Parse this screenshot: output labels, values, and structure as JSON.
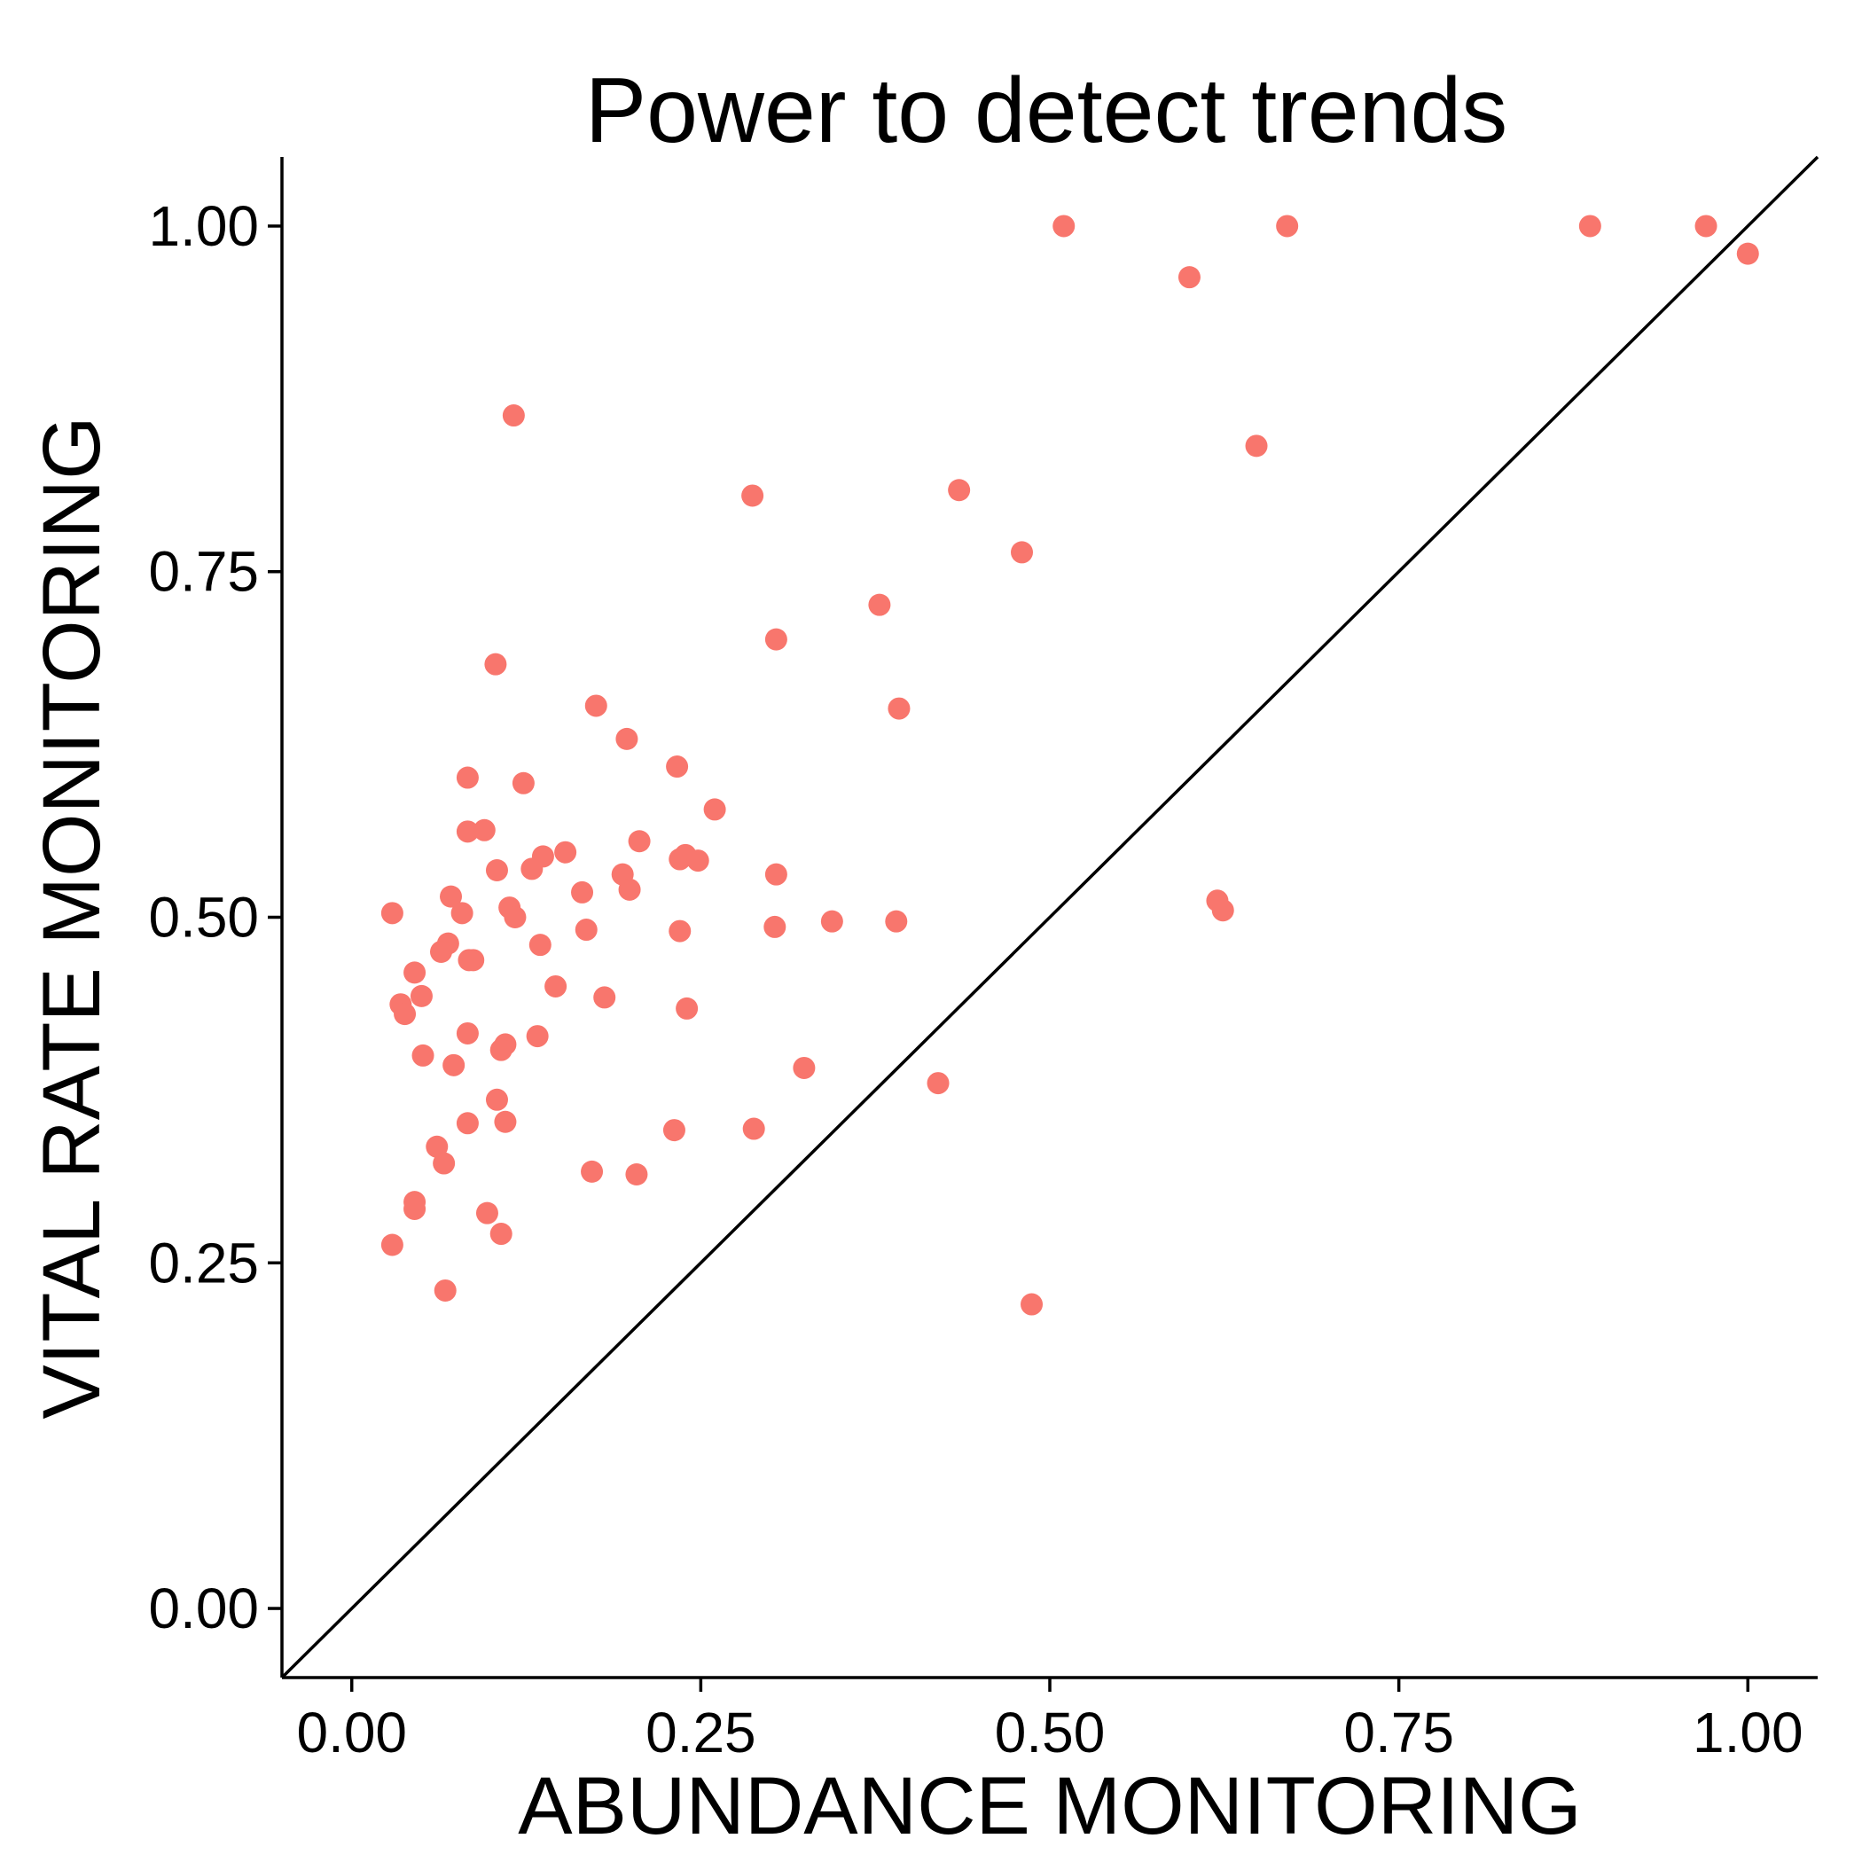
{
  "chart_data": {
    "type": "scatter",
    "title": "Power to detect trends",
    "xlabel": "ABUNDANCE MONITORING",
    "ylabel": "VITAL RATE MONITORING",
    "xlim": [
      -0.05,
      1.05
    ],
    "ylim": [
      -0.05,
      1.05
    ],
    "x_ticks": [
      0.0,
      0.25,
      0.5,
      0.75,
      1.0
    ],
    "x_tick_labels": [
      "0.00",
      "0.25",
      "0.50",
      "0.75",
      "1.00"
    ],
    "y_ticks": [
      0.0,
      0.25,
      0.5,
      0.75,
      1.0
    ],
    "y_tick_labels": [
      "0.00",
      "0.25",
      "0.50",
      "0.75",
      "1.00"
    ],
    "grid": false,
    "legend": "none",
    "reference_line": {
      "type": "identity",
      "slope": 1,
      "intercept": 0
    },
    "point_color": "#f8766d",
    "line_color": "#000000",
    "series": [
      {
        "points": [
          [
            0.51,
            1.0
          ],
          [
            0.67,
            1.0
          ],
          [
            0.887,
            1.0
          ],
          [
            0.97,
            1.0
          ],
          [
            1.0,
            0.98
          ],
          [
            0.6,
            0.963
          ],
          [
            0.648,
            0.841
          ],
          [
            0.435,
            0.809
          ],
          [
            0.287,
            0.805
          ],
          [
            0.48,
            0.764
          ],
          [
            0.378,
            0.726
          ],
          [
            0.304,
            0.701
          ],
          [
            0.392,
            0.651
          ],
          [
            0.175,
            0.653
          ],
          [
            0.197,
            0.629
          ],
          [
            0.233,
            0.609
          ],
          [
            0.083,
            0.601
          ],
          [
            0.123,
            0.597
          ],
          [
            0.26,
            0.578
          ],
          [
            0.083,
            0.562
          ],
          [
            0.095,
            0.563
          ],
          [
            0.206,
            0.555
          ],
          [
            0.153,
            0.547
          ],
          [
            0.137,
            0.544
          ],
          [
            0.235,
            0.542
          ],
          [
            0.239,
            0.545
          ],
          [
            0.248,
            0.541
          ],
          [
            0.104,
            0.534
          ],
          [
            0.129,
            0.535
          ],
          [
            0.194,
            0.531
          ],
          [
            0.304,
            0.531
          ],
          [
            0.165,
            0.518
          ],
          [
            0.199,
            0.52
          ],
          [
            0.071,
            0.515
          ],
          [
            0.113,
            0.507
          ],
          [
            0.079,
            0.503
          ],
          [
            0.117,
            0.5
          ],
          [
            0.029,
            0.503
          ],
          [
            0.344,
            0.497
          ],
          [
            0.39,
            0.497
          ],
          [
            0.303,
            0.493
          ],
          [
            0.168,
            0.491
          ],
          [
            0.235,
            0.49
          ],
          [
            0.069,
            0.481
          ],
          [
            0.135,
            0.48
          ],
          [
            0.064,
            0.475
          ],
          [
            0.084,
            0.469
          ],
          [
            0.087,
            0.469
          ],
          [
            0.045,
            0.46
          ],
          [
            0.146,
            0.45
          ],
          [
            0.05,
            0.443
          ],
          [
            0.181,
            0.442
          ],
          [
            0.035,
            0.437
          ],
          [
            0.038,
            0.43
          ],
          [
            0.24,
            0.434
          ],
          [
            0.083,
            0.416
          ],
          [
            0.133,
            0.414
          ],
          [
            0.11,
            0.408
          ],
          [
            0.107,
            0.404
          ],
          [
            0.051,
            0.4
          ],
          [
            0.073,
            0.393
          ],
          [
            0.324,
            0.391
          ],
          [
            0.42,
            0.38
          ],
          [
            0.104,
            0.368
          ],
          [
            0.083,
            0.351
          ],
          [
            0.11,
            0.352
          ],
          [
            0.231,
            0.346
          ],
          [
            0.288,
            0.347
          ],
          [
            0.061,
            0.334
          ],
          [
            0.066,
            0.322
          ],
          [
            0.172,
            0.316
          ],
          [
            0.204,
            0.314
          ],
          [
            0.045,
            0.294
          ],
          [
            0.045,
            0.289
          ],
          [
            0.097,
            0.286
          ],
          [
            0.107,
            0.271
          ],
          [
            0.029,
            0.263
          ],
          [
            0.067,
            0.23
          ],
          [
            0.487,
            0.22
          ],
          [
            0.62,
            0.512
          ],
          [
            0.624,
            0.505
          ],
          [
            0.103,
            0.683
          ],
          [
            0.116,
            0.863
          ]
        ]
      }
    ]
  }
}
